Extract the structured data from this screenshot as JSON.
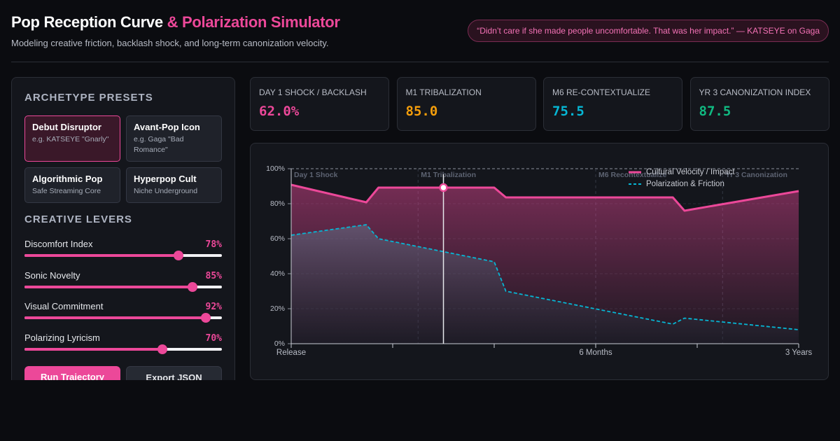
{
  "header": {
    "title": "Pop Reception Curve",
    "title_accent": "& Polarization Simulator",
    "subtitle": "Modeling creative friction, backlash shock, and long-term canonization velocity.",
    "quote": "“Didn’t care if she made people uncomfortable. That was her impact.” — KATSEYE on Gaga"
  },
  "presets": {
    "title": "ARCHETYPE PRESETS",
    "items": [
      {
        "name": "Debut Disruptor",
        "desc": "e.g. KATSEYE \"Gnarly\"",
        "selected": true
      },
      {
        "name": "Avant-Pop Icon",
        "desc": "e.g. Gaga \"Bad Romance\"",
        "selected": false
      },
      {
        "name": "Algorithmic Pop",
        "desc": "Safe Streaming Core",
        "selected": false
      },
      {
        "name": "Hyperpop Cult",
        "desc": "Niche Underground",
        "selected": false
      }
    ]
  },
  "levers": {
    "title": "CREATIVE LEVERS",
    "range": [
      0,
      100
    ],
    "items": [
      {
        "label": "Discomfort Index",
        "value": 78,
        "value_label": "78%"
      },
      {
        "label": "Sonic Novelty",
        "value": 85,
        "value_label": "85%"
      },
      {
        "label": "Visual Commitment",
        "value": 92,
        "value_label": "92%"
      },
      {
        "label": "Polarizing Lyricism",
        "value": 70,
        "value_label": "70%"
      }
    ]
  },
  "buttons": [
    {
      "label": "Run Trajectory",
      "primary": true
    },
    {
      "label": "Export JSON",
      "primary": false
    }
  ],
  "stats": [
    {
      "label": "DAY 1 SHOCK / BACKLASH",
      "value": "62.0%",
      "color": "#ec4899"
    },
    {
      "label": "M1 TRIBALIZATION",
      "value": "85.0",
      "color": "#f59e0b"
    },
    {
      "label": "M6 RE-CONTEXTUALIZE",
      "value": "75.5",
      "color": "#06b6d4"
    },
    {
      "label": "YR 3 CANONIZATION INDEX",
      "value": "87.5",
      "color": "#10b981"
    }
  ],
  "chart_data": {
    "type": "line",
    "x": [
      0,
      14.8,
      17.2,
      30,
      40,
      42.3,
      75.2,
      77.5,
      100
    ],
    "series": [
      {
        "name": "Cultural Velocity / Impact",
        "color": "#ec4899",
        "style": "solid",
        "values": [
          90.8,
          80.8,
          89.2,
          89.2,
          89.2,
          83.6,
          83.6,
          76,
          87.2
        ]
      },
      {
        "name": "Polarization & Friction",
        "color": "#06b6d4",
        "style": "dashed",
        "values": [
          62,
          68,
          60,
          52.6,
          46.8,
          30,
          11.2,
          14.6,
          8
        ]
      }
    ],
    "xlim": [
      0,
      100
    ],
    "xticks": [
      {
        "value": 0,
        "label": "Release"
      },
      {
        "value": 20,
        "label": null
      },
      {
        "value": 40,
        "label": null
      },
      {
        "value": 60,
        "label": "6 Months"
      },
      {
        "value": 80,
        "label": null
      },
      {
        "value": 100,
        "label": "3 Years"
      }
    ],
    "ylim": [
      0,
      100
    ],
    "yticks": [
      {
        "value": 0,
        "label": "0%"
      },
      {
        "value": 20,
        "label": "20%"
      },
      {
        "value": 40,
        "label": "40%"
      },
      {
        "value": 60,
        "label": "60%"
      },
      {
        "value": 80,
        "label": "80%"
      },
      {
        "value": 100,
        "label": "100%"
      }
    ],
    "phases": [
      {
        "label": "Day 1 Shock",
        "x": 0
      },
      {
        "label": "M1 Tribalization",
        "x": 25
      },
      {
        "label": "M6 Recontextualize",
        "x": 60
      },
      {
        "label": "Yr 3 Canonization",
        "x": 85
      }
    ],
    "cursor_x": 30,
    "grid": true,
    "legend": "upper right"
  }
}
